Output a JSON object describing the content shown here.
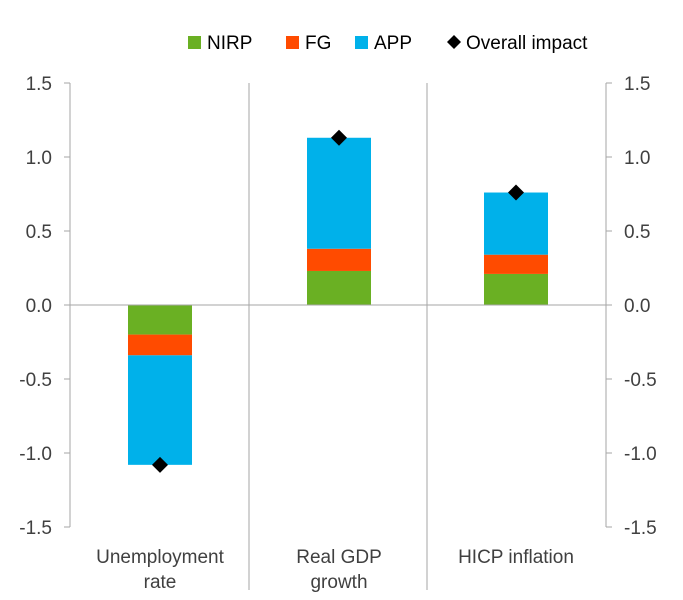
{
  "chart_data": {
    "type": "stacked-bar",
    "title": "",
    "xlabel": "",
    "ylabel": "",
    "ylim": [
      -1.5,
      1.5
    ],
    "yticks": [
      "1.5",
      "1.0",
      "0.5",
      "0.0",
      "-0.5",
      "-1.0",
      "-1.5"
    ],
    "ytick_values": [
      1.5,
      1.0,
      0.5,
      0.0,
      -0.5,
      -1.0,
      -1.5
    ],
    "categories": [
      {
        "line1": "Unemployment",
        "line2": "rate"
      },
      {
        "line1": "Real GDP",
        "line2": "growth"
      },
      {
        "line1": "HICP inflation",
        "line2": ""
      }
    ],
    "series": [
      {
        "name": "NIRP",
        "color": "#6ab023",
        "values": [
          -0.2,
          0.23,
          0.21
        ]
      },
      {
        "name": "FG",
        "color": "#ff4b00",
        "values": [
          -0.14,
          0.15,
          0.13
        ]
      },
      {
        "name": "APP",
        "color": "#00b1ea",
        "values": [
          -0.74,
          0.75,
          0.42
        ]
      }
    ],
    "overall": {
      "name": "Overall impact",
      "color": "#000000",
      "values": [
        -1.08,
        1.13,
        0.76
      ]
    },
    "legend_position": "top-right"
  }
}
